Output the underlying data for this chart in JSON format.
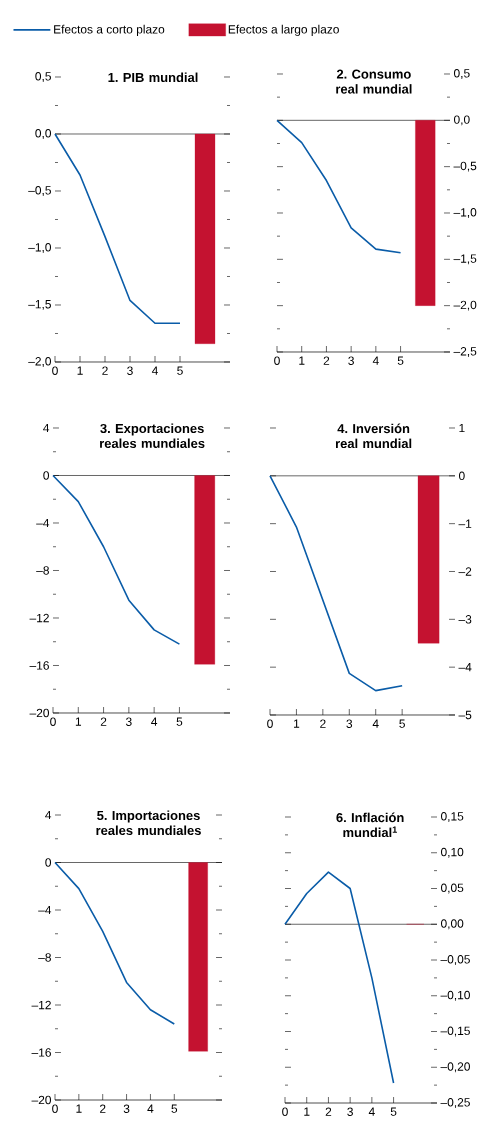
{
  "chart_data": [
    {
      "type": "line",
      "title": "1. PIB mundial",
      "categories": [
        "0",
        "1",
        "2",
        "3",
        "4",
        "5",
        null
      ],
      "legend": "top",
      "ylim": [
        -2,
        0.5
      ],
      "yticks": [
        {
          "value": 0.5,
          "label": "0,5"
        },
        {
          "value": 0.25,
          "label": null
        },
        {
          "value": 0,
          "label": "0,0"
        },
        {
          "value": -0.25,
          "label": null
        },
        {
          "value": -0.5,
          "label": "–0,5"
        },
        {
          "value": -0.75,
          "label": null
        },
        {
          "value": -1,
          "label": "–1,0"
        },
        {
          "value": -1.25,
          "label": null
        },
        {
          "value": -1.5,
          "label": "–1,5"
        },
        {
          "value": -1.75,
          "label": null
        },
        {
          "value": -2,
          "label": "–2,0"
        }
      ],
      "ref_lines": [
        {
          "axis": "y",
          "value": 0
        }
      ],
      "series": [
        {
          "name": "Efectos a corto plazo",
          "color": "#0a5ca8",
          "values": [
            0,
            -0.36,
            -0.9,
            -1.46,
            -1.66,
            -1.66,
            null
          ]
        },
        {
          "name": "Efectos a largo plazo",
          "type": "bar",
          "color": "#c41230",
          "values": [
            null,
            null,
            null,
            null,
            null,
            null,
            -1.84
          ]
        }
      ]
    },
    {
      "type": "line",
      "title": "2. Consumo real mundial",
      "categories": [
        "0",
        "1",
        "2",
        "3",
        "4",
        "5",
        null
      ],
      "ylim": [
        -2.5,
        0.5
      ],
      "yticks": [
        {
          "value": 0.5,
          "label": "0,5"
        },
        {
          "value": 0.25,
          "label": null
        },
        {
          "value": 0,
          "label": "0,0"
        },
        {
          "value": -0.25,
          "label": null
        },
        {
          "value": -0.5,
          "label": "–0,5"
        },
        {
          "value": -0.75,
          "label": null
        },
        {
          "value": -1,
          "label": "–1,0"
        },
        {
          "value": -1.25,
          "label": null
        },
        {
          "value": -1.5,
          "label": "–1,5"
        },
        {
          "value": -1.75,
          "label": null
        },
        {
          "value": -2,
          "label": "–2,0"
        },
        {
          "value": -2.25,
          "label": null
        },
        {
          "value": -2.5,
          "label": "–2,5"
        }
      ],
      "ref_lines": [
        {
          "axis": "y",
          "value": 0
        }
      ],
      "series": [
        {
          "color": "#0a5ca8",
          "values": [
            0,
            -0.24,
            -0.65,
            -1.16,
            -1.39,
            -1.43,
            null
          ]
        },
        {
          "type": "bar",
          "color": "#c41230",
          "values": [
            null,
            null,
            null,
            null,
            null,
            null,
            -2.0
          ]
        }
      ]
    },
    {
      "type": "line",
      "title": "3. Exportaciones reales mundiales",
      "categories": [
        "0",
        "1",
        "2",
        "3",
        "4",
        "5",
        null
      ],
      "ylim": [
        -20,
        4
      ],
      "yticks": [
        {
          "value": 4,
          "label": "4"
        },
        {
          "value": 2,
          "label": null
        },
        {
          "value": 0,
          "label": "0"
        },
        {
          "value": -2,
          "label": null
        },
        {
          "value": -4,
          "label": "–4"
        },
        {
          "value": -6,
          "label": null
        },
        {
          "value": -8,
          "label": "–8"
        },
        {
          "value": -10,
          "label": null
        },
        {
          "value": -12,
          "label": "–12"
        },
        {
          "value": -14,
          "label": null
        },
        {
          "value": -16,
          "label": "–16"
        },
        {
          "value": -18,
          "label": null
        },
        {
          "value": -20,
          "label": "–20"
        }
      ],
      "ref_lines": [
        {
          "axis": "y",
          "value": 0
        }
      ],
      "series": [
        {
          "color": "#0a5ca8",
          "values": [
            0,
            -2.2,
            -6.0,
            -10.5,
            -13.0,
            -14.2,
            null
          ]
        },
        {
          "type": "bar",
          "color": "#c41230",
          "values": [
            null,
            null,
            null,
            null,
            null,
            null,
            -15.9
          ]
        }
      ]
    },
    {
      "type": "line",
      "title": "4. Inversión real mundial",
      "categories": [
        "0",
        "1",
        "2",
        "3",
        "4",
        "5",
        null
      ],
      "ylim": [
        -5,
        1
      ],
      "yticks": [
        {
          "value": 1,
          "label": "1"
        },
        {
          "value": 0,
          "label": "0"
        },
        {
          "value": -1,
          "label": "–1"
        },
        {
          "value": -2,
          "label": "–2"
        },
        {
          "value": -3,
          "label": "–3"
        },
        {
          "value": -4,
          "label": "–4"
        },
        {
          "value": -5,
          "label": "–5"
        }
      ],
      "ref_lines": [
        {
          "axis": "y",
          "value": 0
        }
      ],
      "series": [
        {
          "color": "#0a5ca8",
          "values": [
            0,
            -1.07,
            -2.6,
            -4.13,
            -4.49,
            -4.39,
            null
          ]
        },
        {
          "type": "bar",
          "color": "#c41230",
          "values": [
            null,
            null,
            null,
            null,
            null,
            null,
            -3.5
          ]
        }
      ]
    },
    {
      "type": "line",
      "title": "5. Importaciones reales mundiales",
      "categories": [
        "0",
        "1",
        "2",
        "3",
        "4",
        "5",
        null
      ],
      "ylim": [
        -20,
        4
      ],
      "yticks": [
        {
          "value": 4,
          "label": "4"
        },
        {
          "value": 2,
          "label": null
        },
        {
          "value": 0,
          "label": "0"
        },
        {
          "value": -2,
          "label": null
        },
        {
          "value": -4,
          "label": "–4"
        },
        {
          "value": -6,
          "label": null
        },
        {
          "value": -8,
          "label": "–8"
        },
        {
          "value": -10,
          "label": null
        },
        {
          "value": -12,
          "label": "–12"
        },
        {
          "value": -14,
          "label": null
        },
        {
          "value": -16,
          "label": "–16"
        },
        {
          "value": -18,
          "label": null
        },
        {
          "value": -20,
          "label": "–20"
        }
      ],
      "ref_lines": [
        {
          "axis": "y",
          "value": 0
        }
      ],
      "series": [
        {
          "color": "#0a5ca8",
          "values": [
            0,
            -2.2,
            -5.8,
            -10.1,
            -12.4,
            -13.6,
            null
          ]
        },
        {
          "type": "bar",
          "color": "#c41230",
          "values": [
            null,
            null,
            null,
            null,
            null,
            null,
            -15.9
          ]
        }
      ]
    },
    {
      "type": "line",
      "title": "6. Inflación mundial$^{1}$",
      "categories": [
        "0",
        "1",
        "2",
        "3",
        "4",
        "5",
        null
      ],
      "ylim": [
        -0.25,
        0.15
      ],
      "yticks": [
        {
          "value": 0.15,
          "label": "0,15"
        },
        {
          "value": 0.125,
          "label": null
        },
        {
          "value": 0.1,
          "label": "0,10"
        },
        {
          "value": 0.075,
          "label": null
        },
        {
          "value": 0.05,
          "label": "0,05"
        },
        {
          "value": 0.025,
          "label": null
        },
        {
          "value": 0,
          "label": "0,00"
        },
        {
          "value": -0.025,
          "label": null
        },
        {
          "value": -0.05,
          "label": "–0,05"
        },
        {
          "value": -0.075,
          "label": null
        },
        {
          "value": -0.1,
          "label": "–0,10"
        },
        {
          "value": -0.125,
          "label": null
        },
        {
          "value": -0.15,
          "label": "–0,15"
        },
        {
          "value": -0.175,
          "label": null
        },
        {
          "value": -0.2,
          "label": "–0,20"
        },
        {
          "value": -0.225,
          "label": null
        },
        {
          "value": -0.25,
          "label": "–0,25"
        }
      ],
      "ref_lines": [
        {
          "axis": "y",
          "value": 0
        }
      ],
      "series": [
        {
          "color": "#0a5ca8",
          "values": [
            0,
            0.043,
            0.073,
            0.05,
            -0.075,
            -0.222,
            null
          ]
        },
        {
          "type": "bar",
          "color": "#c41230",
          "values": [
            null,
            null,
            null,
            null,
            null,
            null,
            0
          ]
        }
      ]
    }
  ]
}
